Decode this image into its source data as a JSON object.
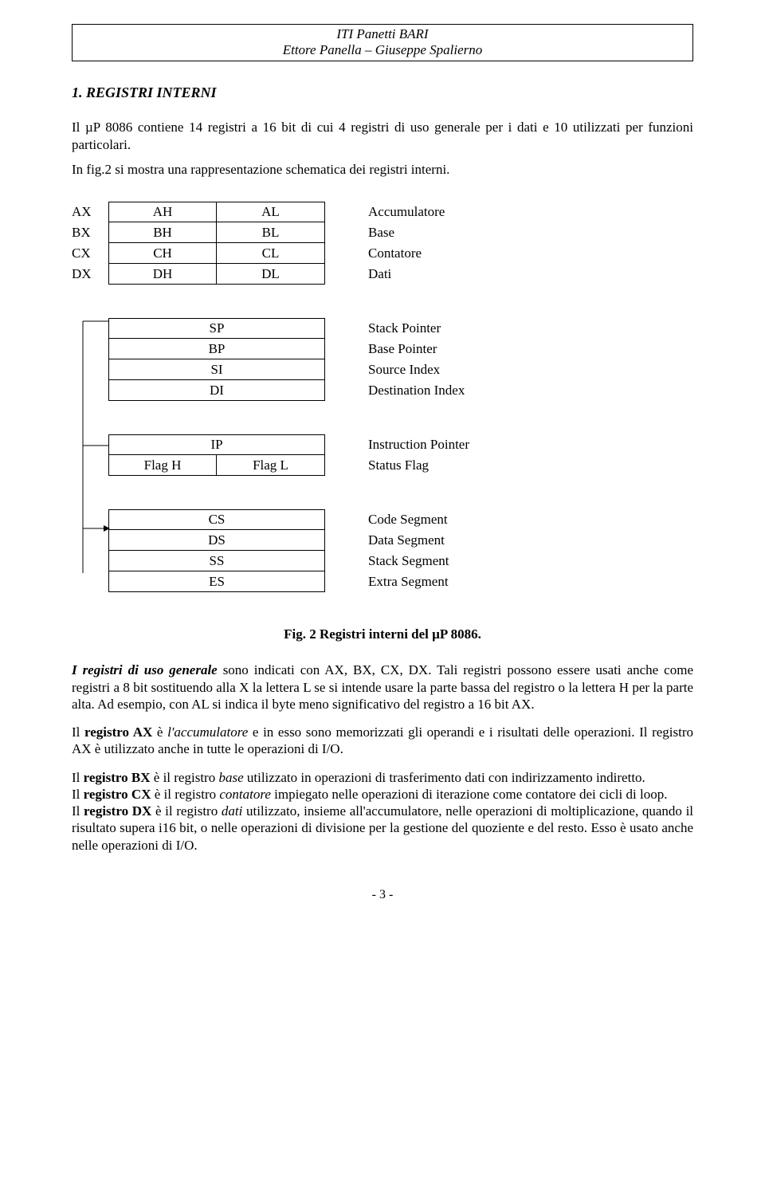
{
  "header": {
    "line1": "ITI Panetti BARI",
    "line2": "Ettore Panella – Giuseppe Spalierno"
  },
  "section_title": "1. REGISTRI INTERNI",
  "intro_p1": "Il µP 8086 contiene 14 registri a 16 bit di cui 4 registri di uso generale per i dati e 10 utilizzati per funzioni particolari.",
  "intro_p2": "In fig.2 si mostra una rappresentazione schematica dei registri interni.",
  "group1": [
    {
      "name": "AX",
      "hi": "AH",
      "lo": "AL",
      "desc": "Accumulatore"
    },
    {
      "name": "BX",
      "hi": "BH",
      "lo": "BL",
      "desc": "Base"
    },
    {
      "name": "CX",
      "hi": "CH",
      "lo": "CL",
      "desc": "Contatore"
    },
    {
      "name": "DX",
      "hi": "DH",
      "lo": "DL",
      "desc": "Dati"
    }
  ],
  "group2": [
    {
      "cell": "SP",
      "desc": "Stack Pointer"
    },
    {
      "cell": "BP",
      "desc": "Base Pointer"
    },
    {
      "cell": "SI",
      "desc": "Source Index"
    },
    {
      "cell": "DI",
      "desc": "Destination Index"
    }
  ],
  "group3": [
    {
      "hi": "",
      "lo": "IP",
      "single": true,
      "desc": "Instruction Pointer"
    },
    {
      "hi": "Flag H",
      "lo": "Flag L",
      "single": false,
      "desc": "Status Flag"
    }
  ],
  "group4": [
    {
      "cell": "CS",
      "desc": "Code Segment"
    },
    {
      "cell": "DS",
      "desc": "Data Segment"
    },
    {
      "cell": "SS",
      "desc": "Stack Segment"
    },
    {
      "cell": "ES",
      "desc": "Extra Segment"
    }
  ],
  "caption": "Fig. 2  Registri interni del µP 8086.",
  "body": {
    "p1a": "I registri di uso generale",
    "p1b": " sono indicati con AX, BX, CX, DX. Tali registri possono essere usati anche come registri a 8 bit sostituendo alla X la lettera L  se si intende usare la parte bassa del registro o la lettera H per la parte alta. Ad esempio, con AL si indica il byte meno significativo del registro a 16 bit AX.",
    "p2a": "Il ",
    "p2b": "registro AX",
    "p2c": "  è ",
    "p2d": "l'accumulatore",
    "p2e": " e in esso sono memorizzati gli operandi e i risultati delle operazioni. Il registro AX è utilizzato anche in tutte le operazioni di I/O.",
    "p3a": "Il ",
    "p3b": "registro BX",
    "p3c": " è il registro ",
    "p3d": "base",
    "p3e": " utilizzato in operazioni di trasferimento dati con indirizzamento indiretto.",
    "p4a": "Il ",
    "p4b": "registro CX",
    "p4c": " è il registro ",
    "p4d": "contatore",
    "p4e": " impiegato nelle operazioni di iterazione come contatore dei cicli di loop.",
    "p5a": "Il ",
    "p5b": "registro DX",
    "p5c": " è il registro ",
    "p5d": "dati",
    "p5e": " utilizzato, insieme all'accumulatore, nelle operazioni di moltiplicazione, quando il risultato supera i16 bit, o nelle operazioni di divisione per la gestione del quoziente e del resto. Esso è usato anche nelle operazioni di I/O."
  },
  "page_number": "- 3 -"
}
